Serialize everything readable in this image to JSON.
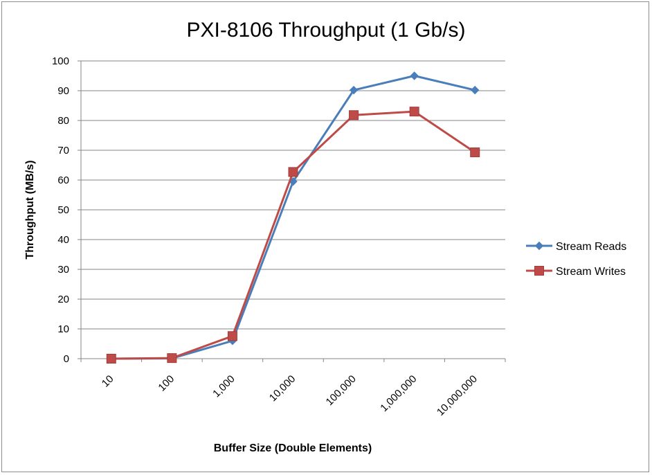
{
  "chart_data": {
    "type": "line",
    "title": "PXI-8106 Throughput (1 Gb/s)",
    "xlabel": "Buffer Size (Double Elements)",
    "ylabel": "Throughput (MB/s)",
    "categories": [
      "10",
      "100",
      "1,000",
      "10,000",
      "100,000",
      "1,000,000",
      "10,000,000"
    ],
    "ylim": [
      0,
      100
    ],
    "yticks": [
      "0",
      "10",
      "20",
      "30",
      "40",
      "50",
      "60",
      "70",
      "80",
      "90",
      "100"
    ],
    "grid": true,
    "legend_position": "right",
    "series": [
      {
        "name": "Stream Reads",
        "values": [
          0,
          0.1,
          6,
          59.5,
          90.2,
          95,
          90.2
        ],
        "color": "#4a7ebb",
        "marker": "diamond"
      },
      {
        "name": "Stream Writes",
        "values": [
          0,
          0.2,
          7.6,
          62.7,
          81.8,
          83,
          69.3
        ],
        "color": "#be4b48",
        "marker": "square"
      }
    ]
  }
}
